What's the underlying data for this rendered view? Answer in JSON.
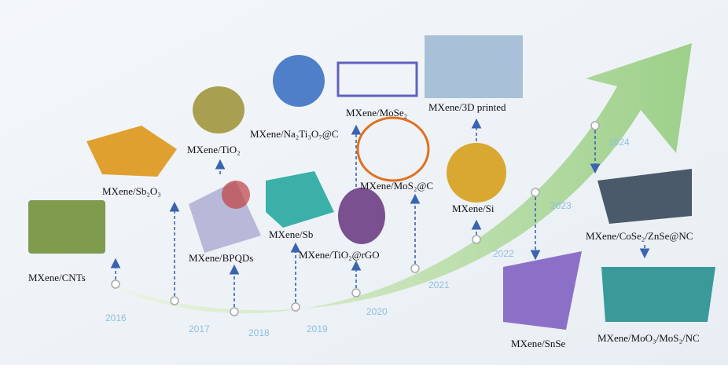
{
  "years": [
    "2016",
    "2017",
    "2018",
    "2019",
    "2020",
    "2021",
    "2022",
    "2023",
    "2024"
  ],
  "labels": {
    "cnts": "MXene/CNTs",
    "sb2o3": "MXene/Sb₂O₃",
    "tio2": "MXene/TiO₂",
    "bpqds": "MXene/BPQDs",
    "na2ti3o7": "MXene/Na₂Ti₃O₇@C",
    "sb": "MXene/Sb",
    "tio2rgo": "MXene/TiO₂@rGO",
    "mose2": "MXene/MoSe₂",
    "mos2c": "MXene/MoS₂@C",
    "printed3d": "MXene/3D printed",
    "si": "MXene/Si",
    "snse": "MXene/SnSe",
    "cose2": "MXene/CoSe₂/ZnSe@NC",
    "moo3": "MXene/MoO₃/MoS₂/NC"
  }
}
